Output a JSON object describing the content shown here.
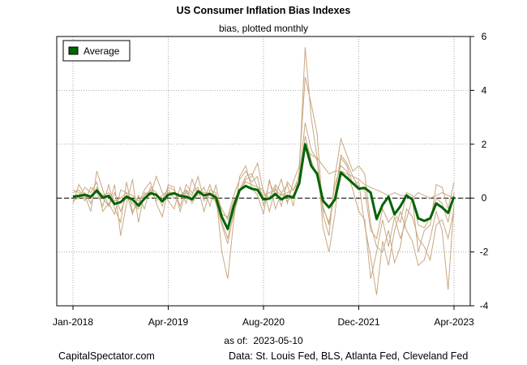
{
  "title": "US Consumer Inflation Bias Indexes",
  "subtitle": "bias, plotted monthly",
  "as_of_label": "as of:",
  "as_of_date": "2023-05-10",
  "footer_left": "CapitalSpectator.com",
  "footer_right": "Data: St. Louis Fed, BLS, Atlanta Fed, Cleveland Fed",
  "colors": {
    "average": "#006400",
    "components": "#c8a882",
    "grid": "#aaaaaa",
    "zero": "#000000"
  },
  "chart_data": {
    "type": "line",
    "title": "US Consumer Inflation Bias Indexes",
    "subtitle": "bias, plotted monthly",
    "x_start": "2018-01",
    "x_end": "2023-04",
    "x_tick_labels": [
      "Jan-2018",
      "Apr-2019",
      "Aug-2020",
      "Dec-2021",
      "Apr-2023"
    ],
    "y_ticks": [
      6,
      4,
      2,
      0,
      -2,
      -4
    ],
    "y_tick_labels": [
      "6",
      "4",
      "2",
      "0",
      "-2",
      "-4"
    ],
    "ylim": [
      -4,
      6
    ],
    "y_axis_side": "right",
    "grid": true,
    "zero_line": "dashed",
    "legend": {
      "position": "top-left",
      "entries": [
        "Average"
      ]
    },
    "series": [
      {
        "name": "Average",
        "values": [
          0.05,
          0.08,
          0.12,
          0.05,
          0.28,
          0.02,
          0.08,
          -0.22,
          -0.15,
          0.05,
          -0.05,
          -0.28,
          -0.02,
          0.18,
          0.12,
          -0.12,
          0.12,
          0.18,
          0.08,
          0.05,
          -0.05,
          0.25,
          0.1,
          0.15,
          0.02,
          -0.7,
          -1.15,
          -0.3,
          0.3,
          0.45,
          0.35,
          0.3,
          -0.05,
          -0.02,
          0.15,
          -0.05,
          0.08,
          0.02,
          0.55,
          2.0,
          1.2,
          0.9,
          -0.1,
          -0.35,
          -0.05,
          0.95,
          0.75,
          0.55,
          0.35,
          0.38,
          0.2,
          -0.78,
          -0.25,
          0.05,
          -0.6,
          -0.3,
          0.1,
          -0.05,
          -0.75,
          -0.85,
          -0.75,
          -0.2,
          -0.35,
          -0.55,
          0.05
        ]
      },
      {
        "values": [
          0.3,
          0.2,
          -0.1,
          0.4,
          0.2,
          -0.3,
          0.5,
          -0.4,
          -0.9,
          0.6,
          -0.5,
          -0.2,
          0.3,
          0.6,
          -0.2,
          -0.7,
          0.4,
          0.3,
          -0.3,
          0.5,
          0.2,
          0.4,
          -0.5,
          0.3,
          0.2,
          -2.0,
          -3.0,
          -0.8,
          0.8,
          1.2,
          0.4,
          0.1,
          -0.6,
          0.7,
          -0.4,
          0.2,
          0.5,
          -0.3,
          1.0,
          5.6,
          3.0,
          1.5,
          -1.1,
          -2.0,
          -0.6,
          1.5,
          1.2,
          0.5,
          0.6,
          -1.0,
          -2.2,
          -3.6,
          -1.6,
          -2.5,
          -1.2,
          -0.5,
          -1.2,
          -1.6,
          -2.5,
          -2.3,
          -1.5,
          -0.5,
          -1.2,
          -3.4,
          -0.2
        ]
      },
      {
        "values": [
          -0.2,
          0.5,
          0.1,
          -0.5,
          1.0,
          0.3,
          -0.3,
          0.5,
          -1.4,
          -0.2,
          0.7,
          -0.9,
          0.2,
          0.1,
          0.8,
          0.2,
          -0.1,
          -0.4,
          0.4,
          -0.2,
          0.7,
          0.1,
          0.4,
          -0.3,
          0.5,
          -0.6,
          -0.7,
          0.1,
          0.7,
          1.0,
          0.6,
          0.8,
          -0.3,
          0.6,
          0.1,
          0.7,
          -0.2,
          0.6,
          1.2,
          4.5,
          3.5,
          2.4,
          -0.6,
          -1.4,
          0.8,
          2.2,
          1.6,
          1.0,
          1.2,
          0.9,
          -1.0,
          -1.8,
          -2.0,
          -1.2,
          -2.4,
          -1.8,
          -0.4,
          -0.7,
          -1.5,
          -1.8,
          -2.3,
          -1.0,
          -0.8,
          -1.5,
          -0.4
        ]
      },
      {
        "values": [
          0.1,
          0.0,
          0.4,
          0.2,
          0.6,
          -0.5,
          -0.2,
          -0.6,
          0.3,
          0.2,
          -0.6,
          0.1,
          -0.4,
          0.4,
          0.2,
          -0.3,
          0.5,
          0.4,
          -0.5,
          0.3,
          0.1,
          0.8,
          -0.1,
          0.5,
          -0.2,
          -1.0,
          -1.7,
          -0.5,
          0.3,
          0.8,
          0.9,
          0.4,
          0.3,
          -0.5,
          0.4,
          -0.3,
          0.6,
          0.3,
          0.8,
          2.8,
          1.8,
          1.4,
          -0.3,
          -1.0,
          0.5,
          1.2,
          1.0,
          0.3,
          -0.5,
          -0.8,
          -3.0,
          -2.0,
          -0.8,
          -1.8,
          -0.7,
          -1.5,
          -0.8,
          0.0,
          -2.0,
          -1.2,
          -1.0,
          0.5,
          0.4,
          -0.4,
          0.6
        ]
      },
      {
        "values": [
          0.2,
          0.3,
          0.0,
          0.1,
          0.3,
          0.1,
          0.2,
          -0.1,
          0.0,
          0.2,
          0.1,
          -0.1,
          0.1,
          0.3,
          0.1,
          0.0,
          0.2,
          0.2,
          0.1,
          0.2,
          0.0,
          0.3,
          0.2,
          0.2,
          0.1,
          -0.4,
          -0.8,
          -0.1,
          0.3,
          0.6,
          0.5,
          0.4,
          0.1,
          0.2,
          0.3,
          0.1,
          0.2,
          0.3,
          0.6,
          1.9,
          1.6,
          1.5,
          1.2,
          0.9,
          1.0,
          1.0,
          0.9,
          0.8,
          0.7,
          0.5,
          0.4,
          0.3,
          0.2,
          0.1,
          0.2,
          0.1,
          0.1,
          0.0,
          0.2,
          0.1,
          0.0,
          0.1,
          0.2,
          0.1,
          0.0
        ]
      },
      {
        "values": [
          -0.1,
          0.0,
          0.2,
          -0.2,
          0.4,
          0.0,
          -0.3,
          0.2,
          -0.5,
          0.1,
          -0.2,
          -0.4,
          0.0,
          0.3,
          -0.1,
          0.1,
          0.3,
          0.0,
          0.1,
          0.3,
          -0.2,
          0.2,
          0.1,
          0.0,
          -0.1,
          -0.9,
          -1.5,
          -0.6,
          0.2,
          0.7,
          0.8,
          1.3,
          0.2,
          0.0,
          0.5,
          0.2,
          -0.1,
          0.1,
          0.5,
          2.3,
          1.4,
          0.8,
          -0.4,
          -0.9,
          0.1,
          1.6,
          1.3,
          0.8,
          0.4,
          0.3,
          -1.2,
          -1.5,
          -0.4,
          -0.9,
          -0.6,
          -0.9,
          0.2,
          0.1,
          -1.0,
          -1.1,
          -0.7,
          0.0,
          -0.2,
          -0.9,
          0.2
        ]
      }
    ]
  }
}
